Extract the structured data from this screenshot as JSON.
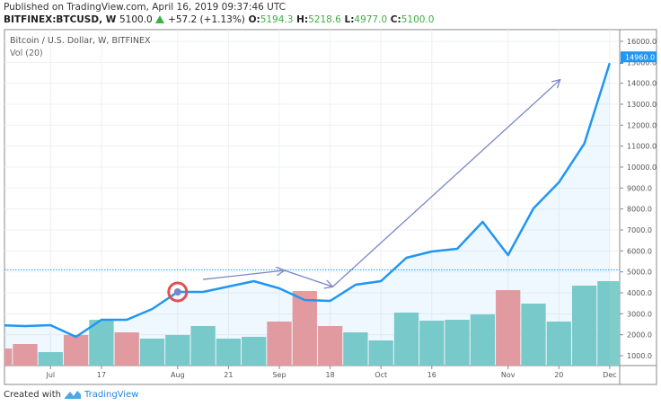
{
  "header": {
    "published": "Published on TradingView.com, April 16, 2019 09:37:46 UTC",
    "symbol": "BITFINEX:BTCUSD, W",
    "last": "5100.0",
    "change": "+57.2 (+1.13%)",
    "o_label": "O:",
    "o": "5194.3",
    "h_label": "H:",
    "h": "5218.6",
    "l_label": "L:",
    "l": "4977.0",
    "c_label": "C:",
    "c": "5100.0"
  },
  "legend": {
    "title": "Bitcoin / U.S. Dollar, W, BITFINEX",
    "vol": "Vol (20)"
  },
  "footer": {
    "created": "Created with",
    "brand": "TradingView"
  },
  "colors": {
    "line": "#2196f3",
    "up": "#7fcdc8",
    "down": "#ef9a9a",
    "arrow": "#7a86c8",
    "marker": "#e05050",
    "badge": "#2196f3"
  },
  "chart_data": {
    "type": "line",
    "title": "Bitcoin / U.S. Dollar, W, BITFINEX",
    "ylim": [
      400,
      16500
    ],
    "yticks": [
      "1000.0",
      "2000.0",
      "3000.0",
      "4000.0",
      "5000.0",
      "6000.0",
      "7000.0",
      "8000.0",
      "9000.0",
      "10000.0",
      "11000.0",
      "12000.0",
      "13000.0",
      "14000.0",
      "15000.0",
      "16000.0"
    ],
    "ytick_values": [
      1000,
      2000,
      3000,
      4000,
      5000,
      6000,
      7000,
      8000,
      9000,
      10000,
      11000,
      12000,
      13000,
      14000,
      15000,
      16000
    ],
    "last_price_label": "14960.0",
    "last_price": 14960,
    "reference_price": 5100,
    "xticks": [
      {
        "label": "Jul",
        "week": 2
      },
      {
        "label": "17",
        "week": 4
      },
      {
        "label": "Aug",
        "week": 7
      },
      {
        "label": "21",
        "week": 9
      },
      {
        "label": "Sep",
        "week": 11
      },
      {
        "label": "18",
        "week": 13
      },
      {
        "label": "Oct",
        "week": 15
      },
      {
        "label": "16",
        "week": 17
      },
      {
        "label": "Nov",
        "week": 20
      },
      {
        "label": "20",
        "week": 22
      },
      {
        "label": "Dec",
        "week": 24
      }
    ],
    "series": [
      {
        "name": "Close",
        "values": [
          2457,
          2414,
          2457,
          1900,
          2714,
          2714,
          3229,
          4043,
          4043,
          4300,
          4557,
          4214,
          3657,
          3614,
          4386,
          4557,
          5671,
          5971,
          6100,
          7386,
          5800,
          8030,
          9270,
          11115,
          14960
        ]
      },
      {
        "name": "Vol (20)",
        "unit": "relative",
        "values": [
          19,
          24,
          15,
          34,
          51,
          37,
          30,
          34,
          44,
          30,
          32,
          49,
          83,
          44,
          37,
          28,
          59,
          50,
          51,
          57,
          84,
          69,
          49,
          89,
          94
        ],
        "direction": [
          "down",
          "down",
          "up",
          "down",
          "up",
          "down",
          "up",
          "up",
          "up",
          "up",
          "up",
          "down",
          "down",
          "down",
          "up",
          "up",
          "up",
          "up",
          "up",
          "up",
          "down",
          "up",
          "up",
          "up",
          "up"
        ]
      }
    ],
    "annotations": {
      "marker": {
        "week": 7,
        "price": 4043
      },
      "arrows": [
        {
          "from": [
            8,
            4640
          ],
          "to": [
            11.2,
            5070
          ]
        },
        {
          "from": [
            11.2,
            5070
          ],
          "to": [
            13.1,
            4290
          ]
        },
        {
          "from": [
            13.1,
            4290
          ],
          "to": [
            22.05,
            14170
          ]
        }
      ]
    }
  }
}
